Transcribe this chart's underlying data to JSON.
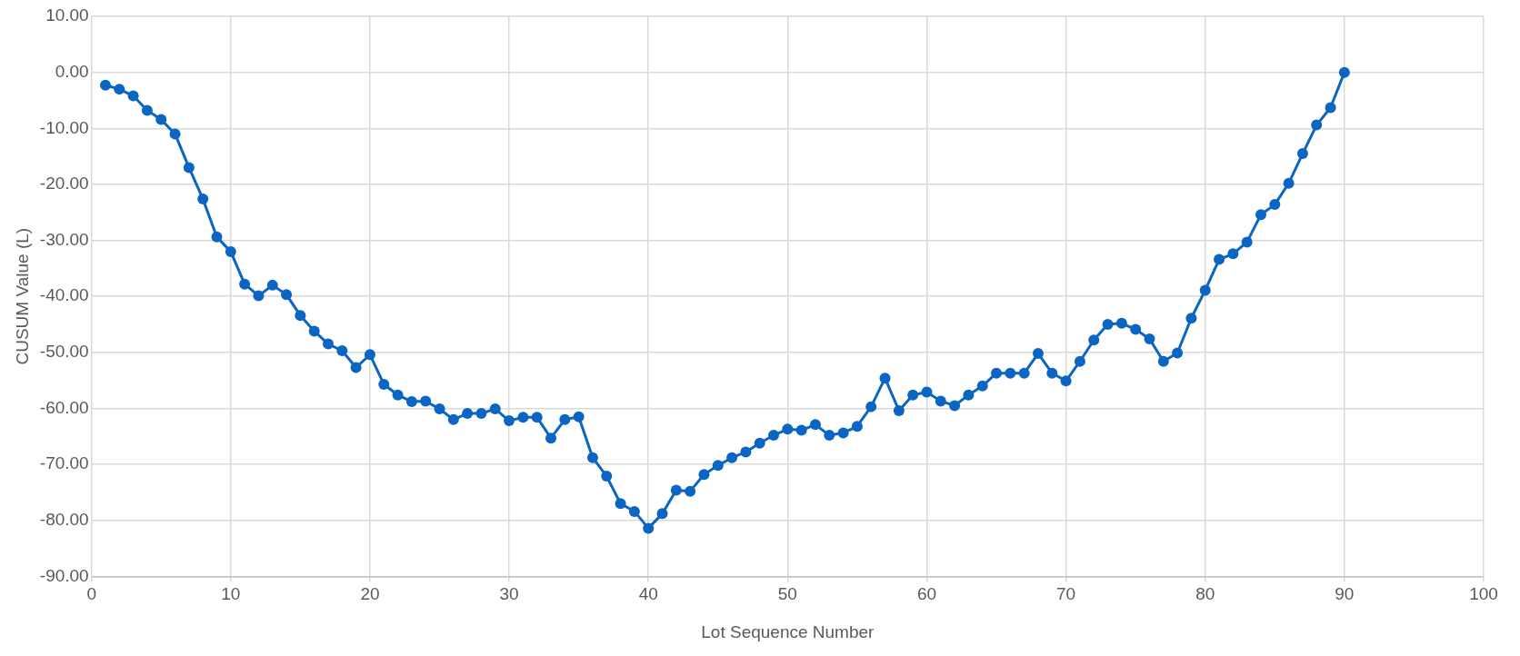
{
  "chart_data": {
    "type": "line",
    "xlabel": "Lot Sequence Number",
    "ylabel": "CUSUM Value (L)",
    "x": [
      1,
      2,
      3,
      4,
      5,
      6,
      7,
      8,
      9,
      10,
      11,
      12,
      13,
      14,
      15,
      16,
      17,
      18,
      19,
      20,
      21,
      22,
      23,
      24,
      25,
      26,
      27,
      28,
      29,
      30,
      31,
      32,
      33,
      34,
      35,
      36,
      37,
      38,
      39,
      40,
      41,
      42,
      43,
      44,
      45,
      46,
      47,
      48,
      49,
      50,
      51,
      52,
      53,
      54,
      55,
      56,
      57,
      58,
      59,
      60,
      61,
      62,
      63,
      64,
      65,
      66,
      67,
      68,
      69,
      70,
      71,
      72,
      73,
      74,
      75,
      76,
      77,
      78,
      79,
      80,
      81,
      82,
      83,
      84,
      85,
      86,
      87,
      88,
      89,
      90
    ],
    "series": [
      {
        "color": "#0a66c2",
        "values": [
          -2.3,
          -3.0,
          -4.2,
          -6.8,
          -8.4,
          -11.0,
          -17.0,
          -22.6,
          -29.4,
          -32.0,
          -37.8,
          -39.9,
          -38.0,
          -39.7,
          -43.4,
          -46.2,
          -48.5,
          -49.7,
          -52.7,
          -50.4,
          -55.7,
          -57.6,
          -58.8,
          -58.7,
          -60.1,
          -62.0,
          -60.9,
          -60.9,
          -60.1,
          -62.2,
          -61.6,
          -61.6,
          -65.3,
          -62.0,
          -61.5,
          -68.8,
          -72.1,
          -77.0,
          -78.4,
          -81.4,
          -78.8,
          -74.6,
          -74.8,
          -71.8,
          -70.2,
          -68.8,
          -67.8,
          -66.2,
          -64.8,
          -63.7,
          -63.9,
          -62.9,
          -64.8,
          -64.4,
          -63.2,
          -59.7,
          -54.6,
          -60.4,
          -57.6,
          -57.1,
          -58.7,
          -59.5,
          -57.6,
          -56.0,
          -53.7,
          -53.7,
          -53.7,
          -50.2,
          -53.7,
          -55.1,
          -51.6,
          -47.8,
          -45.0,
          -44.8,
          -45.9,
          -47.6,
          -51.6,
          -50.1,
          -43.9,
          -38.9,
          -33.4,
          -32.4,
          -30.3,
          -25.4,
          -23.6,
          -19.8,
          -14.5,
          -9.4,
          -6.3,
          0.0
        ]
      }
    ],
    "xlim": [
      0,
      100
    ],
    "xticks": [
      0,
      10,
      20,
      30,
      40,
      50,
      60,
      70,
      80,
      90,
      100
    ],
    "ylim": [
      -90,
      10
    ],
    "yticks": [
      {
        "value": -90,
        "label": "-90.00"
      },
      {
        "value": -80,
        "label": "-80.00"
      },
      {
        "value": -70,
        "label": "-70.00"
      },
      {
        "value": -60,
        "label": "-60.00"
      },
      {
        "value": -50,
        "label": "-50.00"
      },
      {
        "value": -40,
        "label": "-40.00"
      },
      {
        "value": -30,
        "label": "-30.00"
      },
      {
        "value": -20,
        "label": "-20.00"
      },
      {
        "value": -10,
        "label": "-10.00"
      },
      {
        "value": 0,
        "label": "0.00"
      },
      {
        "value": 10,
        "label": "10.00"
      }
    ],
    "grid": true,
    "marker": "circle",
    "line_style": "solid",
    "legend": false
  }
}
